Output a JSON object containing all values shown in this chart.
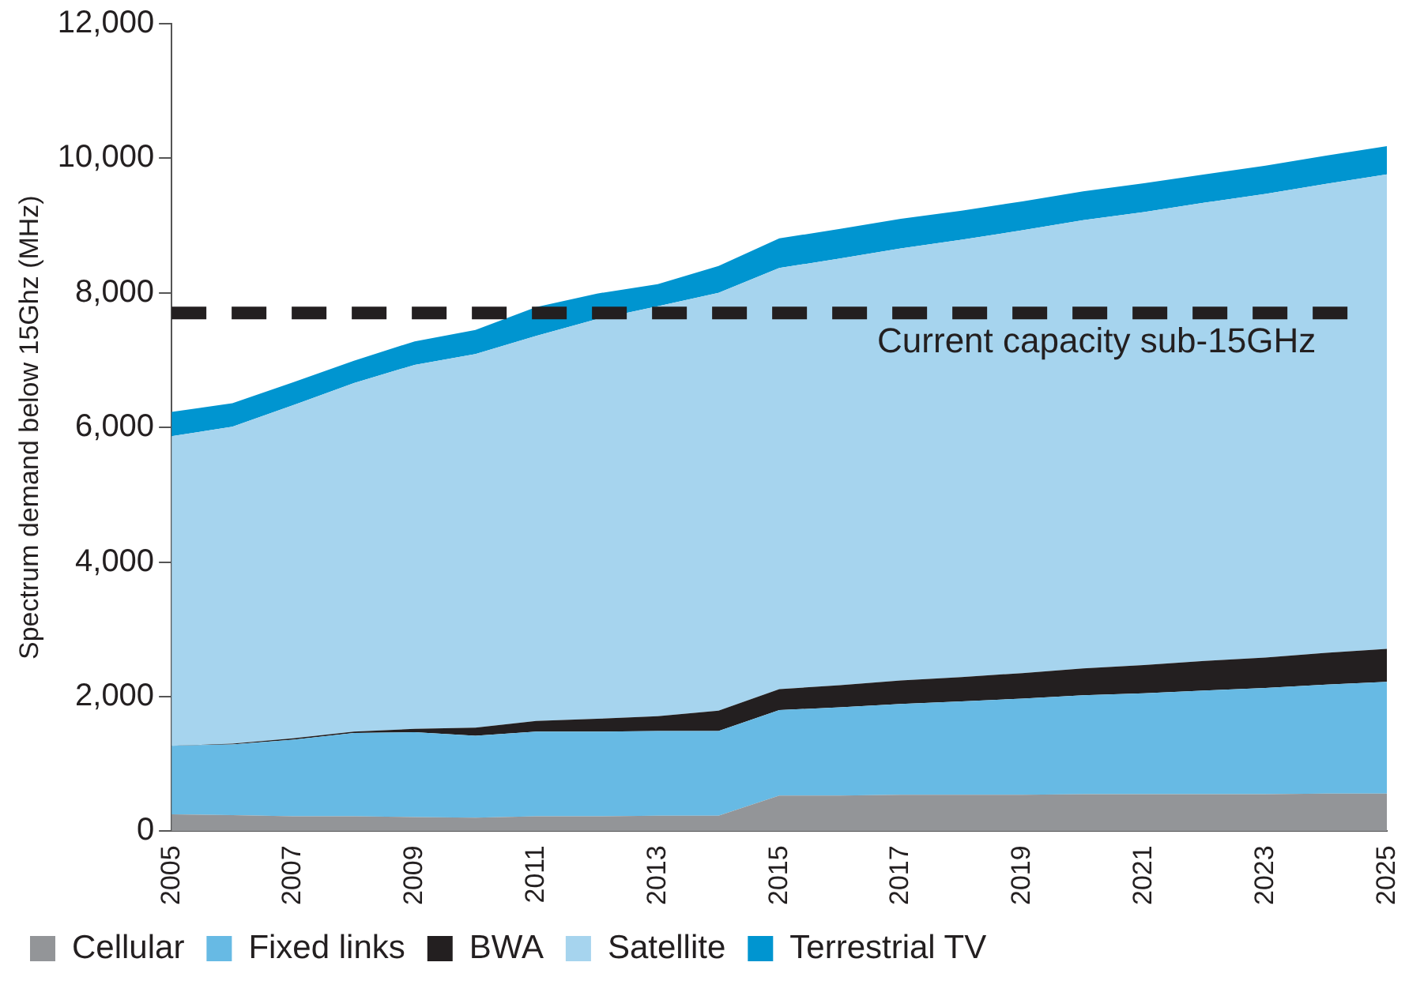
{
  "chart_data": {
    "type": "area",
    "stacked": true,
    "ylabel": "Spectrum demand below 15Ghz (MHz)",
    "categories": [
      "2005",
      null,
      "2007",
      null,
      "2009",
      null,
      "2011",
      null,
      "2013",
      null,
      "2015",
      null,
      "2017",
      null,
      "2019",
      null,
      "2021",
      null,
      "2023",
      null,
      "2025"
    ],
    "ylim": [
      0,
      12000
    ],
    "yticks": [
      {
        "value": 0,
        "label": "0"
      },
      {
        "value": 2000,
        "label": "2,000"
      },
      {
        "value": 4000,
        "label": "4,000"
      },
      {
        "value": 6000,
        "label": "6,000"
      },
      {
        "value": 8000,
        "label": "8,000"
      },
      {
        "value": 10000,
        "label": "10,000"
      },
      {
        "value": 12000,
        "label": "12,000"
      }
    ],
    "series": [
      {
        "name": "Cellular",
        "color": "#939598",
        "values": [
          250,
          240,
          220,
          220,
          210,
          200,
          220,
          220,
          230,
          230,
          530,
          530,
          540,
          540,
          540,
          550,
          550,
          550,
          550,
          560,
          560
        ]
      },
      {
        "name": "Fixed links",
        "color": "#67bae4",
        "values": [
          1020,
          1050,
          1140,
          1240,
          1260,
          1220,
          1260,
          1260,
          1260,
          1260,
          1270,
          1310,
          1350,
          1390,
          1430,
          1470,
          1500,
          1540,
          1580,
          1620,
          1660
        ]
      },
      {
        "name": "BWA",
        "color": "#231f20",
        "values": [
          0,
          10,
          20,
          20,
          50,
          120,
          160,
          190,
          220,
          300,
          310,
          330,
          350,
          360,
          380,
          400,
          420,
          440,
          450,
          470,
          490
        ]
      },
      {
        "name": "Satellite",
        "color": "#a6d4ee",
        "values": [
          4600,
          4710,
          4950,
          5180,
          5410,
          5550,
          5720,
          5940,
          6090,
          6210,
          6260,
          6340,
          6420,
          6500,
          6580,
          6660,
          6730,
          6810,
          6890,
          6970,
          7050
        ]
      },
      {
        "name": "Terrestrial TV",
        "color": "#0095d0",
        "values": [
          360,
          350,
          340,
          330,
          350,
          360,
          430,
          380,
          330,
          400,
          440,
          440,
          440,
          430,
          430,
          430,
          430,
          420,
          420,
          420,
          420
        ]
      }
    ],
    "ref_lines": [
      {
        "axis": "y",
        "value": 7700,
        "label": "Current capacity sub-15GHz",
        "color": "#231f20",
        "line_style": "dashed"
      }
    ],
    "legend": "bottom"
  }
}
